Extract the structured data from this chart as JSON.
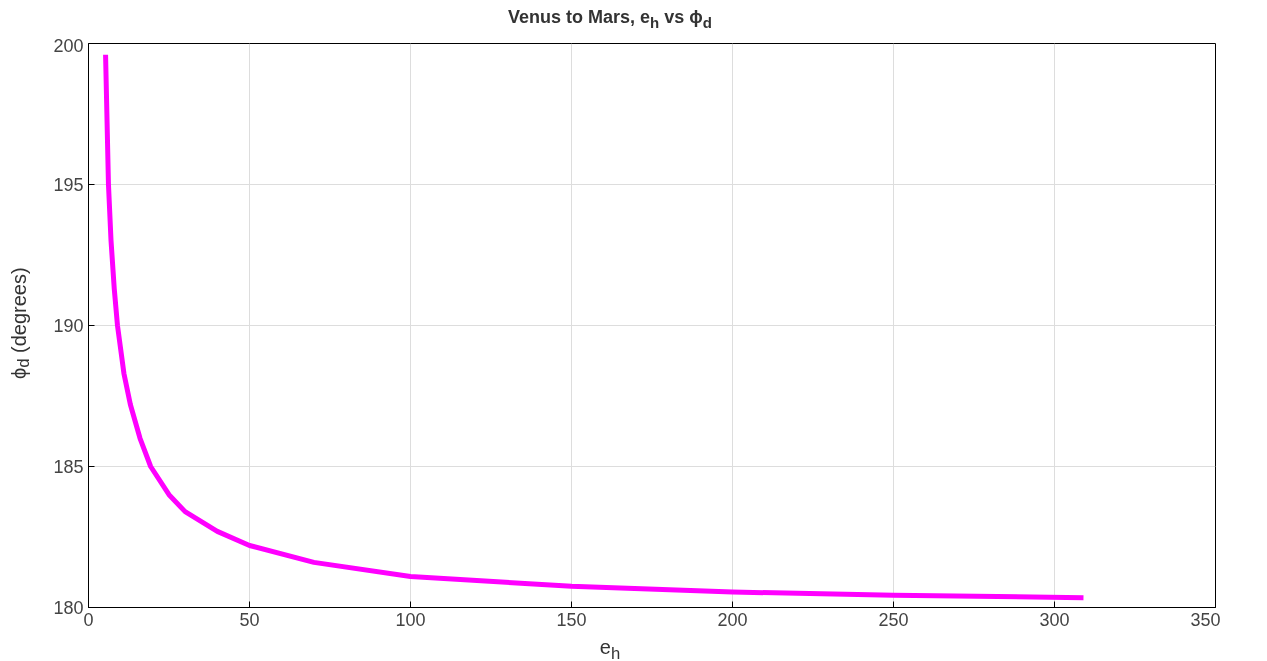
{
  "chart_data": {
    "type": "line",
    "title": "Venus to Mars, e$_{h}$ vs ϕ$_{d}$",
    "xlabel": "e$_{h}$",
    "ylabel": "ϕ$_{d}$ (degrees)",
    "xlim": [
      0,
      350
    ],
    "ylim": [
      180,
      200
    ],
    "xticks": [
      0,
      50,
      100,
      150,
      200,
      250,
      300,
      350
    ],
    "yticks": [
      180,
      185,
      190,
      195,
      200
    ],
    "grid": true,
    "marker": "none",
    "line_style": "solid",
    "series": [
      {
        "color": "#ff00ff",
        "x": [
          5.3,
          6.2,
          7,
          8,
          9,
          11,
          13,
          16,
          19.3,
          25,
          30,
          40,
          50,
          70,
          100,
          150,
          200,
          250,
          309
        ],
        "values": [
          199.6,
          195,
          193,
          191.3,
          190,
          188.3,
          187.2,
          186,
          185,
          184,
          183.4,
          182.7,
          182.2,
          181.6,
          181.1,
          180.75,
          180.55,
          180.43,
          180.35
        ]
      }
    ]
  }
}
